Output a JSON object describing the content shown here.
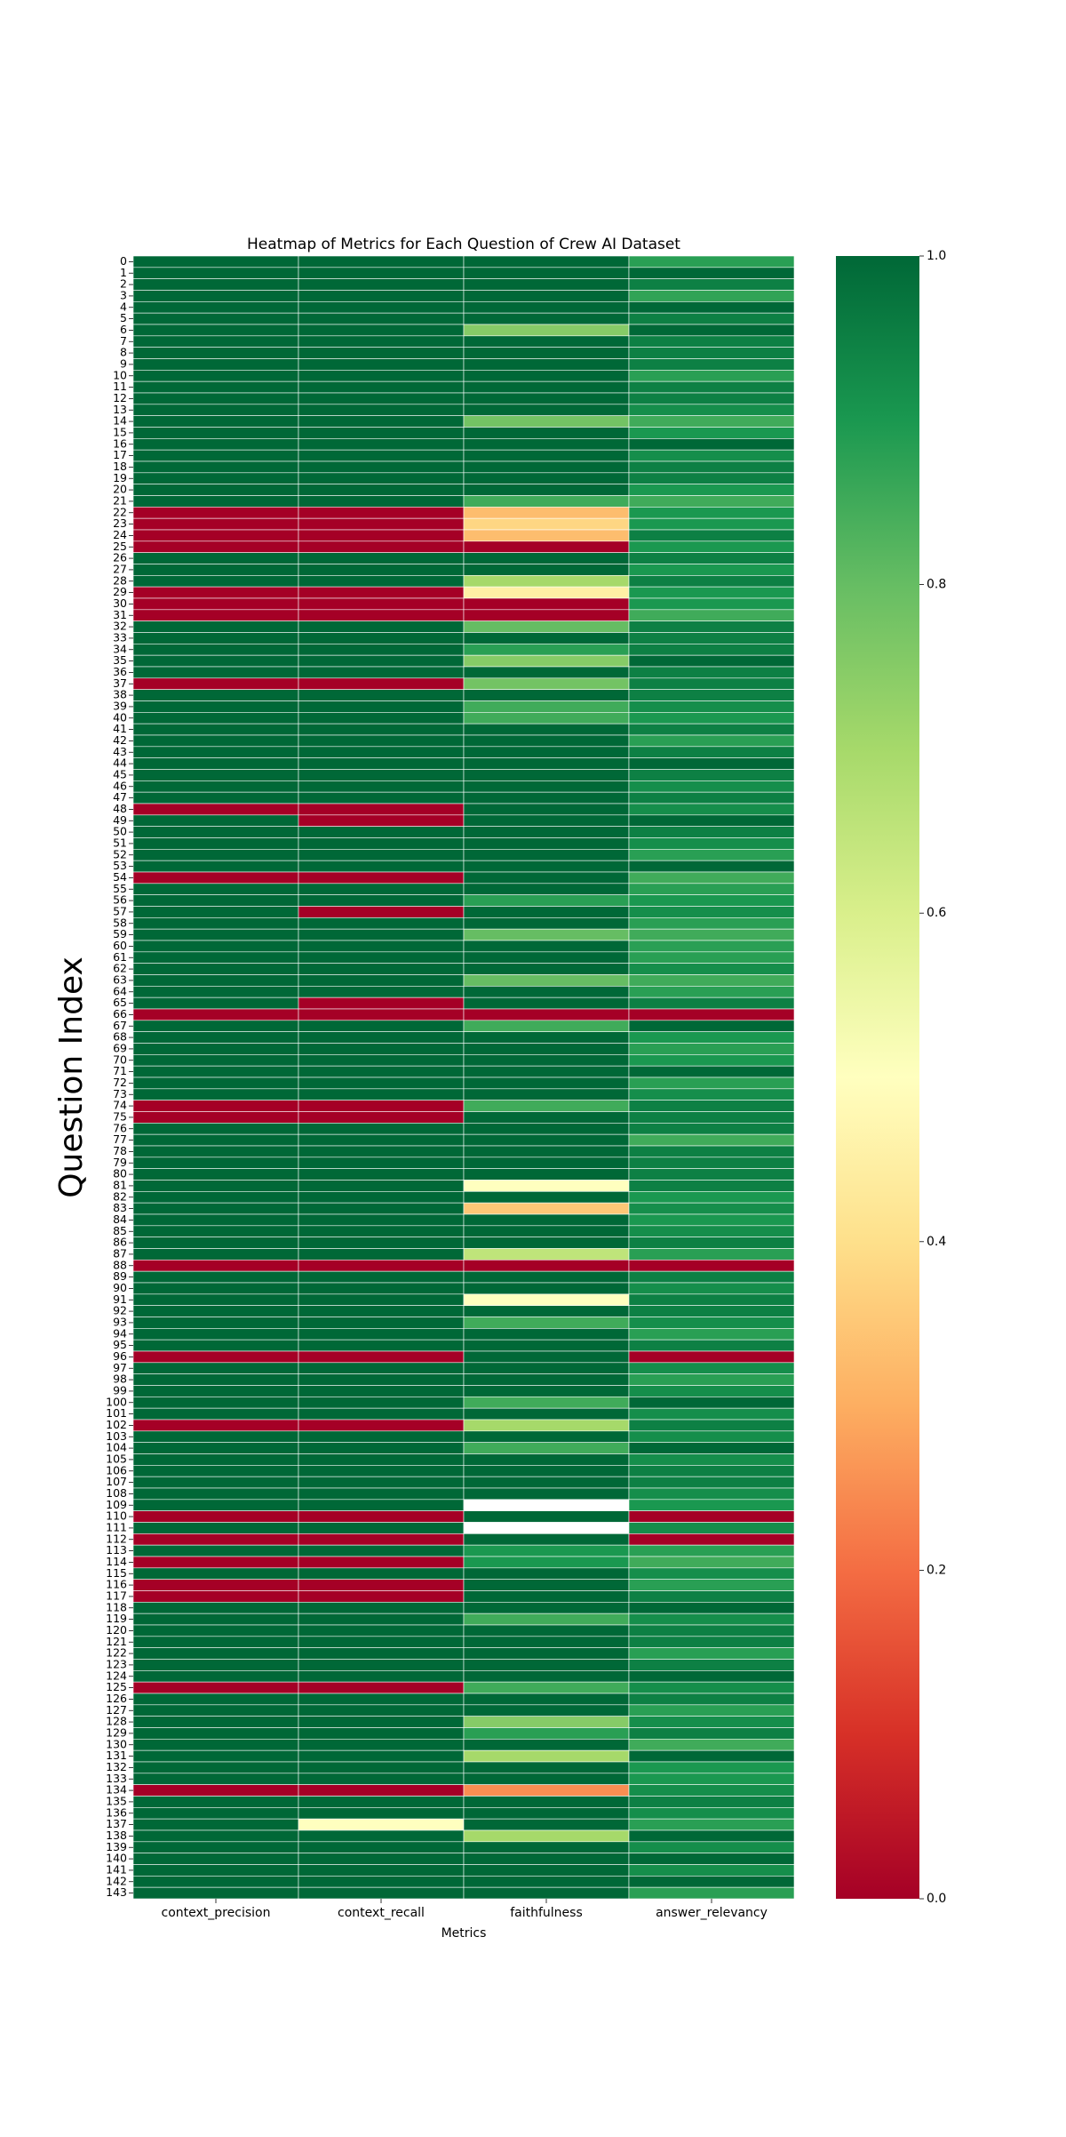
{
  "chart_data": {
    "type": "heatmap",
    "title": "Heatmap of Metrics for Each Question of Crew AI Dataset",
    "xlabel": "Metrics",
    "ylabel": "Question Index",
    "columns": [
      "context_precision",
      "context_recall",
      "faithfulness",
      "answer_relevancy"
    ],
    "row_labels_start": 0,
    "row_labels_end": 143,
    "colorbar": {
      "min": 0.0,
      "max": 1.0,
      "ticks": [
        "0.0",
        "0.2",
        "0.4",
        "0.6",
        "0.8",
        "1.0"
      ],
      "colormap": "RdYlGn"
    },
    "missing_cells": [
      [
        109,
        2
      ],
      [
        111,
        2
      ]
    ],
    "values": [
      [
        1,
        1,
        1,
        0.88
      ],
      [
        1,
        1,
        1,
        1
      ],
      [
        1,
        1,
        1,
        0.95
      ],
      [
        1,
        1,
        1,
        0.87
      ],
      [
        1,
        1,
        1,
        1
      ],
      [
        1,
        1,
        1,
        0.95
      ],
      [
        1,
        1,
        0.75,
        1
      ],
      [
        1,
        1,
        1,
        0.95
      ],
      [
        1,
        1,
        1,
        0.95
      ],
      [
        1,
        1,
        1,
        0.95
      ],
      [
        1,
        1,
        1,
        0.88
      ],
      [
        1,
        1,
        1,
        0.95
      ],
      [
        1,
        1,
        1,
        0.95
      ],
      [
        1,
        1,
        1,
        0.92
      ],
      [
        1,
        1,
        0.78,
        0.85
      ],
      [
        1,
        1,
        1,
        0.9
      ],
      [
        1,
        1,
        1,
        1
      ],
      [
        1,
        1,
        1,
        0.92
      ],
      [
        1,
        1,
        1,
        0.95
      ],
      [
        1,
        1,
        1,
        0.95
      ],
      [
        1,
        1,
        1,
        0.9
      ],
      [
        1,
        1,
        0.85,
        0.85
      ],
      [
        0,
        0,
        0.33,
        0.9
      ],
      [
        0,
        0,
        0.38,
        0.9
      ],
      [
        0,
        0,
        0.33,
        0.95
      ],
      [
        0,
        0,
        0,
        0.9
      ],
      [
        1,
        1,
        1,
        0.95
      ],
      [
        1,
        1,
        1,
        0.9
      ],
      [
        1,
        1,
        0.7,
        0.95
      ],
      [
        0,
        0,
        0.45,
        0.9
      ],
      [
        0,
        0,
        0,
        0.9
      ],
      [
        0,
        0,
        0,
        0.85
      ],
      [
        1,
        1,
        0.8,
        0.95
      ],
      [
        1,
        1,
        1,
        0.95
      ],
      [
        1,
        1,
        0.88,
        0.95
      ],
      [
        1,
        1,
        0.75,
        1
      ],
      [
        1,
        1,
        1,
        0.95
      ],
      [
        0,
        0,
        0.78,
        0.95
      ],
      [
        1,
        1,
        1,
        0.95
      ],
      [
        1,
        1,
        0.85,
        0.92
      ],
      [
        1,
        1,
        0.85,
        0.9
      ],
      [
        1,
        1,
        1,
        0.95
      ],
      [
        1,
        1,
        1,
        0.88
      ],
      [
        1,
        1,
        1,
        0.95
      ],
      [
        1,
        1,
        1,
        1
      ],
      [
        1,
        1,
        1,
        0.95
      ],
      [
        1,
        1,
        1,
        0.92
      ],
      [
        1,
        1,
        1,
        0.95
      ],
      [
        0,
        0,
        1,
        0.92
      ],
      [
        1,
        0,
        1,
        1
      ],
      [
        1,
        1,
        1,
        0.95
      ],
      [
        1,
        1,
        1,
        0.92
      ],
      [
        1,
        1,
        1,
        0.88
      ],
      [
        1,
        1,
        1,
        1
      ],
      [
        0,
        0,
        1,
        0.85
      ],
      [
        1,
        1,
        1,
        0.88
      ],
      [
        1,
        1,
        0.88,
        0.9
      ],
      [
        1,
        0,
        1,
        0.92
      ],
      [
        1,
        1,
        1,
        0.88
      ],
      [
        1,
        1,
        0.8,
        0.85
      ],
      [
        1,
        1,
        1,
        0.88
      ],
      [
        1,
        1,
        1,
        0.88
      ],
      [
        1,
        1,
        1,
        0.92
      ],
      [
        1,
        1,
        0.8,
        0.85
      ],
      [
        1,
        1,
        1,
        0.88
      ],
      [
        1,
        0,
        1,
        0.95
      ],
      [
        0,
        0,
        0,
        0
      ],
      [
        1,
        1,
        0.85,
        1
      ],
      [
        1,
        1,
        1,
        0.9
      ],
      [
        1,
        1,
        1,
        0.88
      ],
      [
        1,
        1,
        1,
        0.9
      ],
      [
        1,
        1,
        1,
        1
      ],
      [
        1,
        1,
        1,
        0.88
      ],
      [
        1,
        1,
        1,
        0.92
      ],
      [
        0,
        0,
        0.85,
        0.95
      ],
      [
        0,
        0,
        1,
        0.95
      ],
      [
        1,
        1,
        1,
        0.95
      ],
      [
        1,
        1,
        1,
        0.85
      ],
      [
        1,
        1,
        1,
        0.95
      ],
      [
        1,
        1,
        1,
        0.95
      ],
      [
        1,
        1,
        1,
        0.95
      ],
      [
        1,
        1,
        0.5,
        0.95
      ],
      [
        1,
        1,
        1,
        0.9
      ],
      [
        1,
        1,
        0.35,
        0.92
      ],
      [
        1,
        1,
        1,
        0.9
      ],
      [
        1,
        1,
        1,
        0.92
      ],
      [
        1,
        1,
        1,
        0.95
      ],
      [
        1,
        1,
        0.65,
        0.88
      ],
      [
        0,
        0,
        0,
        0
      ],
      [
        1,
        1,
        1,
        0.95
      ],
      [
        1,
        1,
        1,
        0.92
      ],
      [
        1,
        1,
        0.5,
        0.95
      ],
      [
        1,
        1,
        1,
        0.95
      ],
      [
        1,
        1,
        0.85,
        0.92
      ],
      [
        1,
        1,
        1,
        0.88
      ],
      [
        1,
        1,
        1,
        0.95
      ],
      [
        0,
        0,
        1,
        0
      ],
      [
        1,
        1,
        1,
        0.92
      ],
      [
        1,
        1,
        1,
        0.88
      ],
      [
        1,
        1,
        1,
        0.92
      ],
      [
        1,
        1,
        0.85,
        1
      ],
      [
        1,
        1,
        1,
        0.92
      ],
      [
        0,
        0,
        0.7,
        0.95
      ],
      [
        1,
        1,
        1,
        0.92
      ],
      [
        1,
        1,
        0.85,
        1
      ],
      [
        1,
        1,
        1,
        0.92
      ],
      [
        1,
        1,
        1,
        0.95
      ],
      [
        1,
        1,
        1,
        0.95
      ],
      [
        1,
        1,
        1,
        0.92
      ],
      [
        1,
        1,
        null,
        0.9
      ],
      [
        0,
        0,
        1,
        0
      ],
      [
        1,
        1,
        null,
        0.92
      ],
      [
        0,
        0,
        1,
        0
      ],
      [
        1,
        1,
        0.9,
        0.88
      ],
      [
        0,
        0,
        0.9,
        0.85
      ],
      [
        1,
        1,
        1,
        0.92
      ],
      [
        0,
        0,
        1,
        0.88
      ],
      [
        0,
        0,
        1,
        0.95
      ],
      [
        1,
        1,
        1,
        1
      ],
      [
        1,
        1,
        0.85,
        0.92
      ],
      [
        1,
        1,
        1,
        0.95
      ],
      [
        1,
        1,
        1,
        0.95
      ],
      [
        1,
        1,
        1,
        0.88
      ],
      [
        1,
        1,
        1,
        0.95
      ],
      [
        1,
        1,
        1,
        1
      ],
      [
        0,
        0,
        0.85,
        0.92
      ],
      [
        1,
        1,
        1,
        0.95
      ],
      [
        1,
        1,
        1,
        0.88
      ],
      [
        1,
        1,
        0.75,
        0.92
      ],
      [
        1,
        1,
        0.88,
        0.95
      ],
      [
        1,
        1,
        1,
        0.85
      ],
      [
        1,
        1,
        0.7,
        1
      ],
      [
        1,
        1,
        1,
        0.9
      ],
      [
        1,
        1,
        1,
        0.9
      ],
      [
        0,
        0,
        0.25,
        0.92
      ],
      [
        1,
        1,
        1,
        0.95
      ],
      [
        1,
        1,
        1,
        0.92
      ],
      [
        1,
        0.5,
        1,
        0.88
      ],
      [
        1,
        1,
        0.7,
        1
      ],
      [
        1,
        1,
        1,
        0.92
      ],
      [
        1,
        1,
        1,
        1
      ],
      [
        1,
        1,
        1,
        0.92
      ],
      [
        1,
        1,
        1,
        1
      ],
      [
        1,
        1,
        1,
        0.88
      ]
    ]
  }
}
